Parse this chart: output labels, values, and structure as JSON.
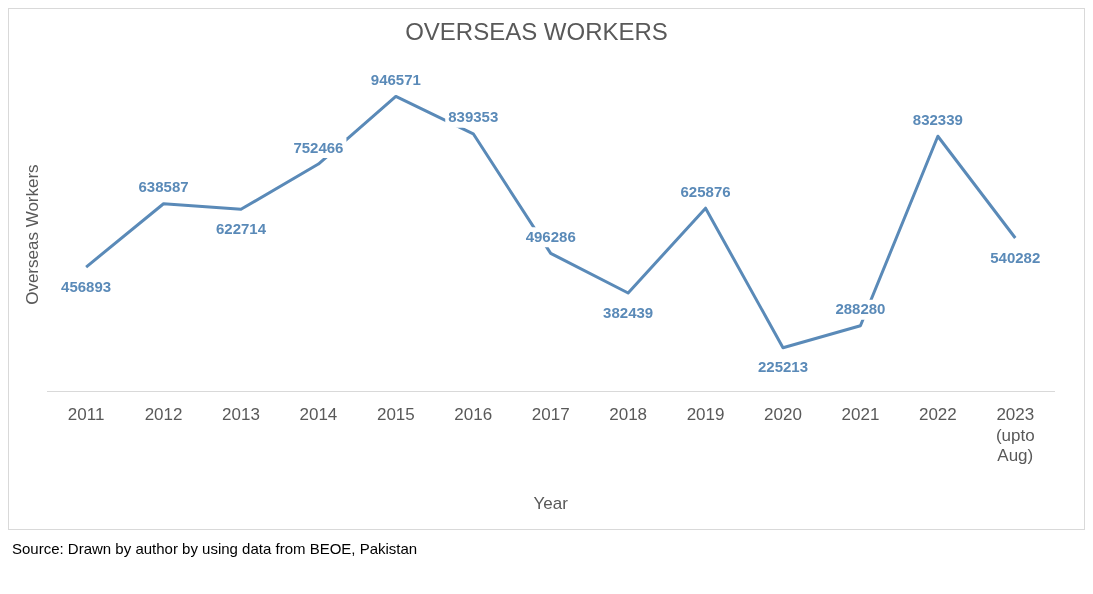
{
  "chart_data": {
    "type": "line",
    "title": "OVERSEAS WORKERS",
    "xlabel": "Year",
    "ylabel": "Overseas Workers",
    "categories": [
      "2011",
      "2012",
      "2013",
      "2014",
      "2015",
      "2016",
      "2017",
      "2018",
      "2019",
      "2020",
      "2021",
      "2022",
      "2023 (upto Aug)"
    ],
    "series": [
      {
        "color": "#5a8ab8",
        "values": [
          456893,
          638587,
          622714,
          752466,
          946571,
          839353,
          496286,
          382439,
          625876,
          225213,
          288280,
          832339,
          540282
        ]
      }
    ],
    "data_labels": true,
    "grid": false,
    "legend": false,
    "marker": "none",
    "line_style": "solid",
    "annotations": [
      "Source: Drawn by author by using data from BEOE, Pakistan"
    ]
  }
}
